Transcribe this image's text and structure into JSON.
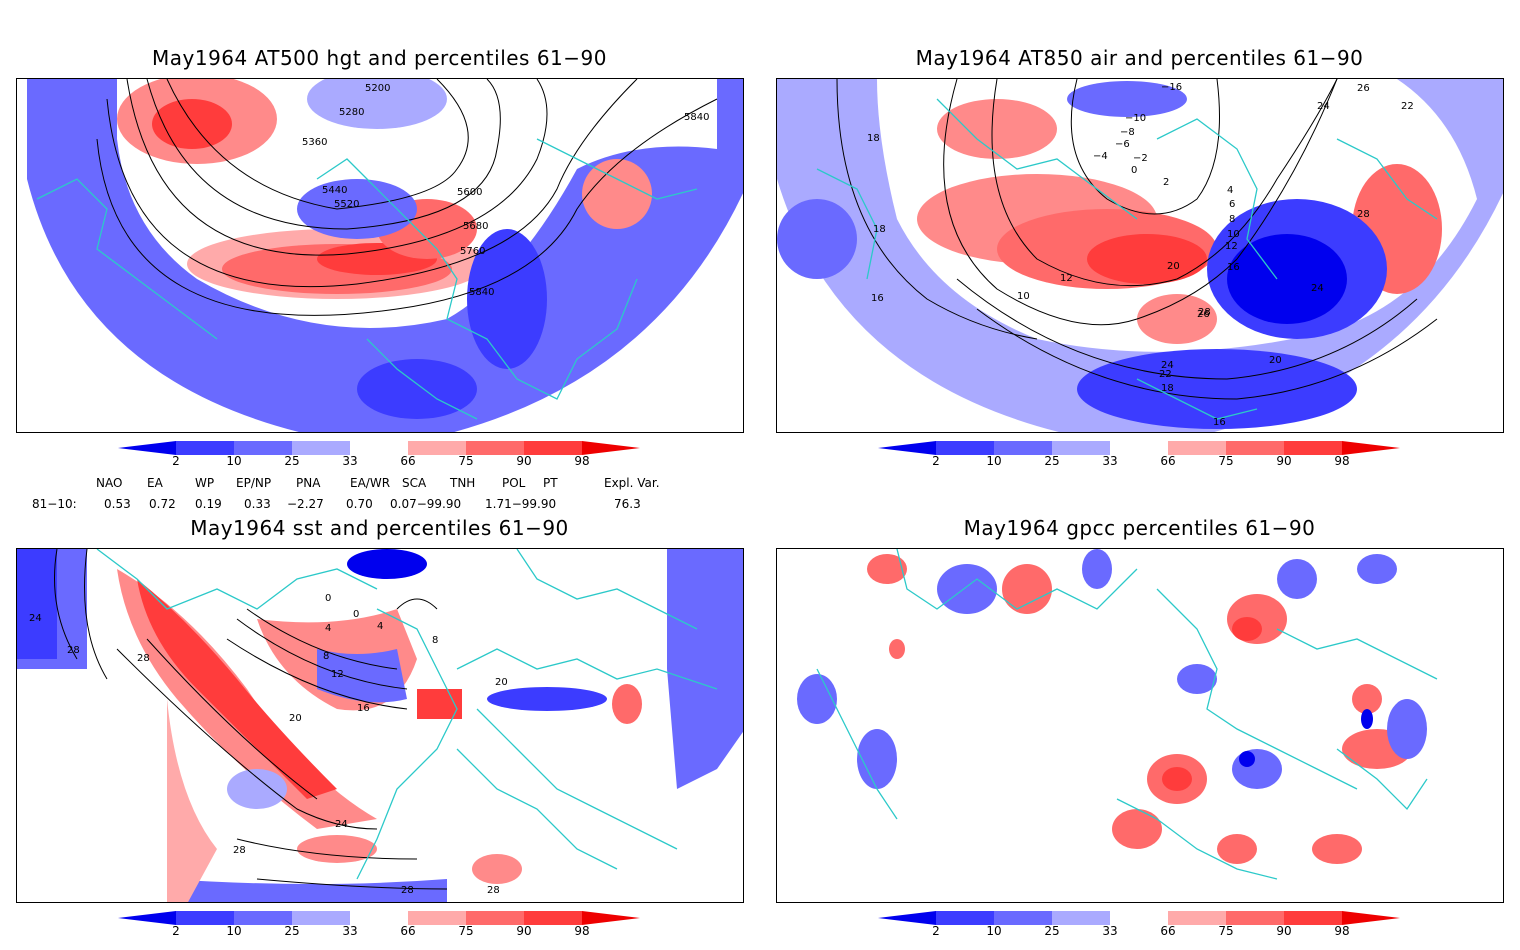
{
  "panels": [
    {
      "title": "May1964 AT500 hgt and percentiles 61−90",
      "contour_labels": [
        "5200",
        "5280",
        "5360",
        "5440",
        "5520",
        "5600",
        "5680",
        "5760",
        "5840",
        "5840"
      ]
    },
    {
      "title": "May1964 AT850 air and percentiles 61−90",
      "contour_labels": [
        "−16",
        "−14",
        "−12",
        "−10",
        "−8",
        "−6",
        "−4",
        "−2",
        "0",
        "2",
        "4",
        "6",
        "8",
        "10",
        "12",
        "12",
        "14",
        "16",
        "18",
        "20",
        "22",
        "24",
        "24",
        "26",
        "26",
        "22",
        "28",
        "28",
        "18",
        "18",
        "16",
        "16",
        "16",
        "20",
        "18",
        "16",
        "20",
        "14",
        "24",
        "22",
        "18"
      ]
    },
    {
      "title": "May1964 sst and percentiles 61−90",
      "contour_labels": [
        "24",
        "28",
        "28",
        "0",
        "0",
        "4",
        "4",
        "8",
        "8",
        "12",
        "16",
        "20",
        "20",
        "24",
        "28",
        "28",
        "28"
      ]
    },
    {
      "title": "May1964 gpcc percentiles 61−90",
      "contour_labels": []
    }
  ],
  "colorbar": {
    "labels": [
      "2",
      "10",
      "25",
      "33",
      "66",
      "75",
      "90",
      "98"
    ],
    "colors": [
      "#0000ee",
      "#3c3cff",
      "#6a6aff",
      "#aaaaff",
      "#ffffff",
      "#ffaaaa",
      "#ff6a6a",
      "#ff3c3c",
      "#ee0000"
    ]
  },
  "indices": {
    "headers": [
      "NAO",
      "EA",
      "WP",
      "EP/NP",
      "PNA",
      "EA/WR",
      "SCA",
      "TNH",
      "POL",
      "PT",
      "Expl. Var."
    ],
    "row_label": "81−10:",
    "values": [
      "0.53",
      "0.72",
      "0.19",
      "0.33",
      "−2.27",
      "0.70",
      "0.07−99.90",
      "1.71−99.90",
      "76.3"
    ]
  }
}
